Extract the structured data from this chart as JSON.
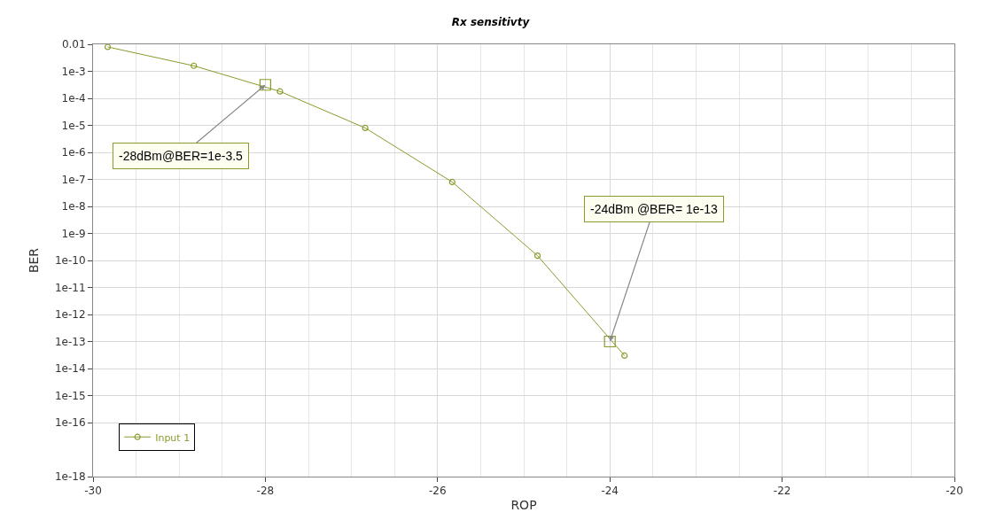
{
  "chart_data": {
    "type": "line",
    "title": "Rx sensitivty",
    "xlabel": "ROP",
    "ylabel": "BER",
    "series": [
      {
        "name": "Input 1",
        "color": "#8b9a2b",
        "marker": "circle",
        "x": [
          -29.83,
          -28.83,
          -27.83,
          -26.84,
          -25.83,
          -24.84,
          -23.83
        ],
        "values": [
          0.008,
          0.0016,
          0.00018,
          8e-06,
          8e-08,
          1.5e-10,
          3e-14
        ]
      },
      {
        "type": "scatter",
        "color": "#8b9a2b",
        "marker": "square",
        "x": [
          -28,
          -24
        ],
        "values": [
          0.000316,
          1e-13
        ]
      }
    ],
    "annotations": [
      {
        "text": "-28dBm@BER=1e-3.5",
        "x": -28,
        "y": 0.000316
      },
      {
        "text": "-24dBm @BER= 1e-13",
        "x": -24,
        "y": 1e-13
      }
    ],
    "xlim": [
      -30,
      -20
    ],
    "xticks": [
      -30,
      -28,
      -26,
      -24,
      -22,
      -20
    ],
    "ylim": [
      1e-18,
      0.01
    ],
    "yticks": [
      {
        "value": 0.01,
        "label": "0.01"
      },
      {
        "value": 0.001,
        "label": "1e-3"
      },
      {
        "value": 0.0001,
        "label": "1e-4"
      },
      {
        "value": 1e-05,
        "label": "1e-5"
      },
      {
        "value": 1e-06,
        "label": "1e-6"
      },
      {
        "value": 1e-07,
        "label": "1e-7"
      },
      {
        "value": 1e-08,
        "label": "1e-8"
      },
      {
        "value": 1e-09,
        "label": "1e-9"
      },
      {
        "value": 1e-10,
        "label": "1e-10"
      },
      {
        "value": 1e-11,
        "label": "1e-11"
      },
      {
        "value": 1e-12,
        "label": "1e-12"
      },
      {
        "value": 1e-13,
        "label": "1e-13"
      },
      {
        "value": 1e-14,
        "label": "1e-14"
      },
      {
        "value": 1e-15,
        "label": "1e-15"
      },
      {
        "value": 1e-16,
        "label": "1e-16"
      },
      {
        "value": 1e-18,
        "label": "1e-18"
      }
    ],
    "grid": true,
    "legend": "bottom left",
    "log": true
  }
}
